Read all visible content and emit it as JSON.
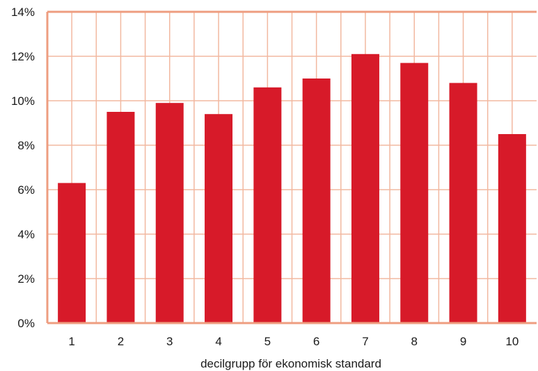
{
  "chart_data": {
    "type": "bar",
    "title": "",
    "xlabel": "decilgrupp för ekonomisk standard",
    "ylabel": "",
    "categories": [
      "1",
      "2",
      "3",
      "4",
      "5",
      "6",
      "7",
      "8",
      "9",
      "10"
    ],
    "values": [
      6.3,
      9.5,
      9.9,
      9.4,
      10.6,
      11.0,
      12.1,
      11.7,
      10.8,
      8.5
    ],
    "ylim": [
      0,
      14
    ],
    "yticks": [
      {
        "value": 0,
        "label": "0%"
      },
      {
        "value": 2,
        "label": "2%"
      },
      {
        "value": 4,
        "label": "4%"
      },
      {
        "value": 6,
        "label": "6%"
      },
      {
        "value": 8,
        "label": "8%"
      },
      {
        "value": 10,
        "label": "10%"
      },
      {
        "value": 12,
        "label": "12%"
      },
      {
        "value": 14,
        "label": "14%"
      }
    ],
    "grid": true,
    "legend": "none",
    "colors": {
      "bar": "#d71a29",
      "grid": "#f2b8a0",
      "axis": "#ee9d80",
      "text": "#1a1a1a"
    }
  }
}
